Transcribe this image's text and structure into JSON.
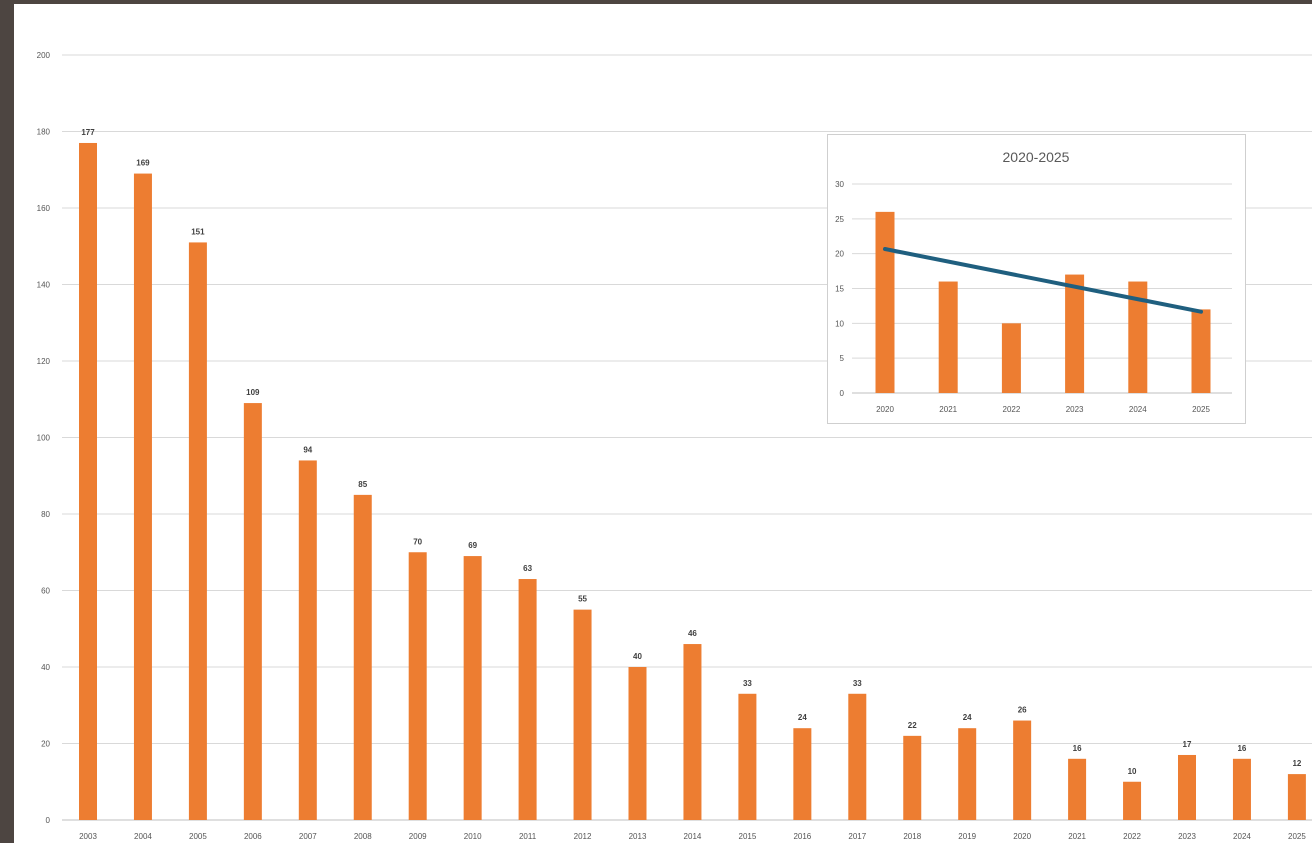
{
  "chart_data": [
    {
      "type": "bar",
      "title": "",
      "xlabel": "",
      "ylabel": "",
      "categories": [
        "2003",
        "2004",
        "2005",
        "2006",
        "2007",
        "2008",
        "2009",
        "2010",
        "2011",
        "2012",
        "2013",
        "2014",
        "2015",
        "2016",
        "2017",
        "2018",
        "2019",
        "2020",
        "2021",
        "2022",
        "2023",
        "2024",
        "2025"
      ],
      "values": [
        177,
        169,
        151,
        109,
        94,
        85,
        70,
        69,
        63,
        55,
        40,
        46,
        33,
        24,
        33,
        22,
        24,
        26,
        16,
        10,
        17,
        16,
        12
      ],
      "ylim": [
        0,
        200
      ],
      "yticks": [
        0,
        20,
        40,
        60,
        80,
        100,
        120,
        140,
        160,
        180,
        200
      ],
      "grid": true,
      "data_labels": true,
      "bar_color": "#ed7d31"
    },
    {
      "type": "bar",
      "title": "2020-2025",
      "xlabel": "",
      "ylabel": "",
      "categories": [
        "2020",
        "2021",
        "2022",
        "2023",
        "2024",
        "2025"
      ],
      "values": [
        26,
        16,
        10,
        17,
        16,
        12
      ],
      "ylim": [
        0,
        30
      ],
      "yticks": [
        0,
        5,
        10,
        15,
        20,
        25,
        30
      ],
      "grid": true,
      "trendline": {
        "type": "linear",
        "color": "#1f5f7f"
      },
      "bar_color": "#ed7d31"
    }
  ]
}
